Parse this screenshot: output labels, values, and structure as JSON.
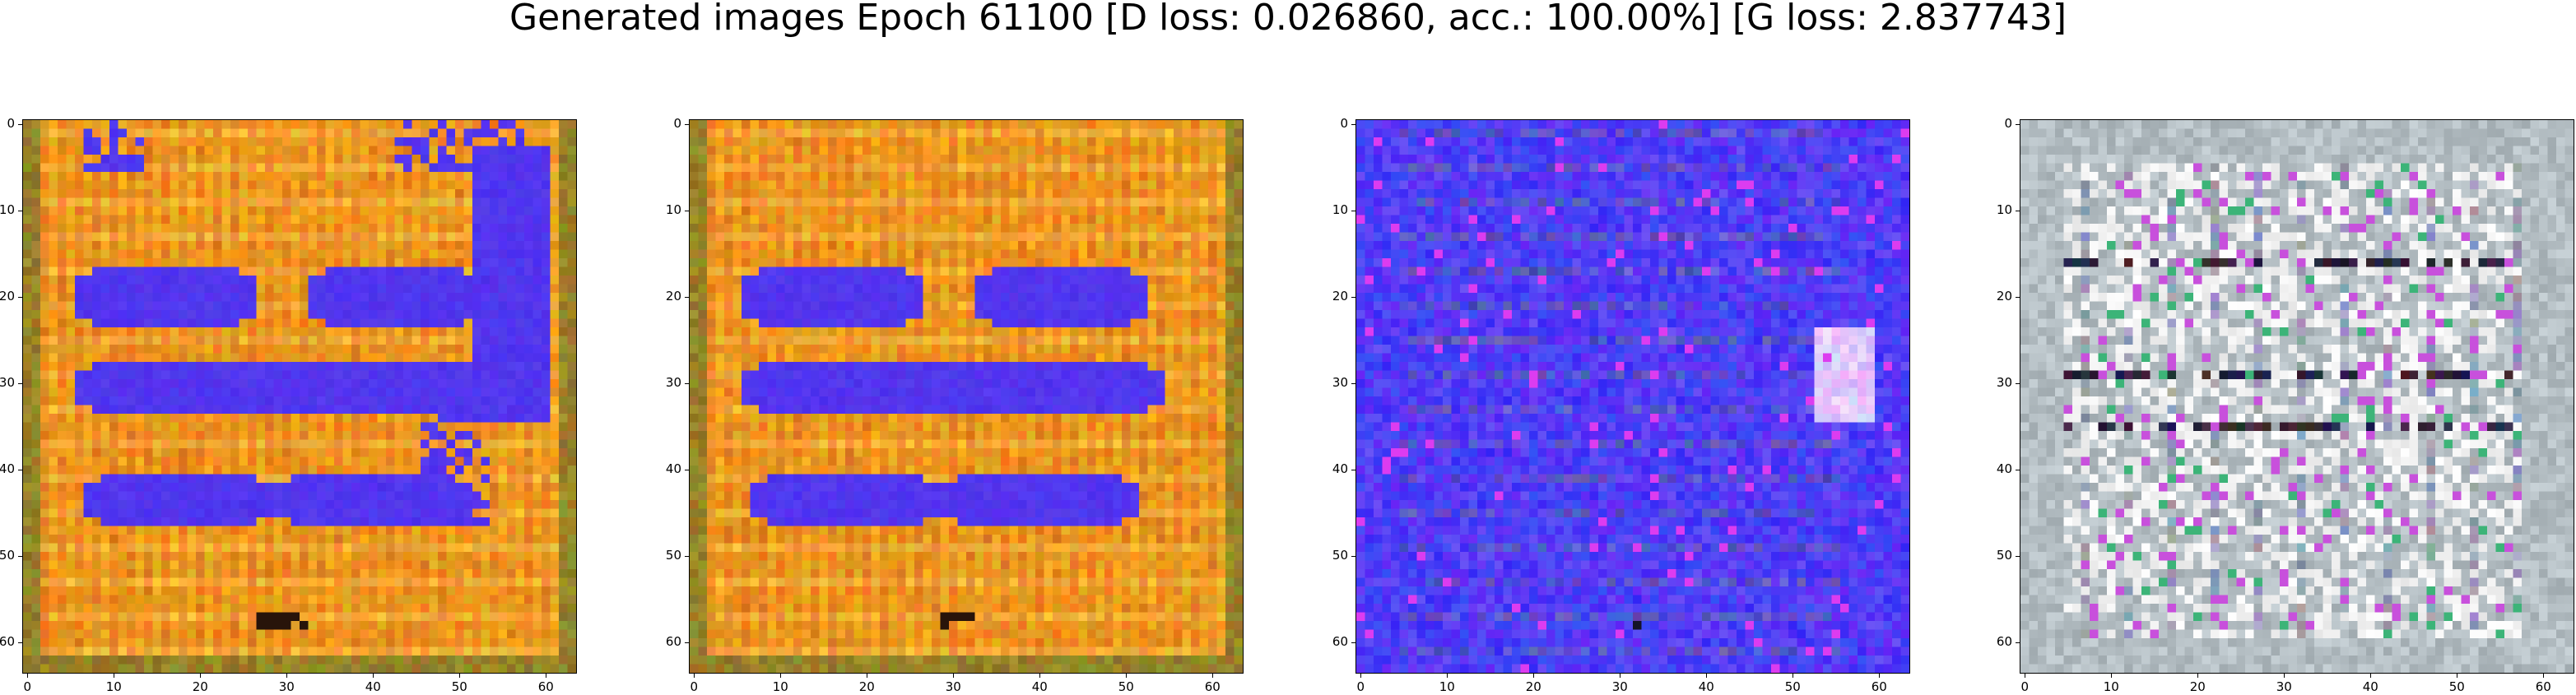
{
  "figure": {
    "title": "Generated images Epoch 61100 [D loss: 0.026860, acc.: 100.00%] [G loss: 2.837743]"
  },
  "axes_ticks": {
    "x": [
      "0",
      "10",
      "20",
      "30",
      "40",
      "50",
      "60"
    ],
    "y": [
      "0",
      "10",
      "20",
      "30",
      "40",
      "50",
      "60"
    ]
  },
  "colors": {
    "blue": "#4a2cf5",
    "orange": "#f0a218",
    "magenta": "#c23cf0",
    "grey": "#b8c4c8"
  },
  "panels": [
    {
      "name": "generated-image-1",
      "palette": "orange-with-blue-bars"
    },
    {
      "name": "generated-image-2",
      "palette": "orange-with-blue-bars"
    },
    {
      "name": "generated-image-3",
      "palette": "blue-noise"
    },
    {
      "name": "generated-image-4",
      "palette": "grey-noise"
    }
  ]
}
